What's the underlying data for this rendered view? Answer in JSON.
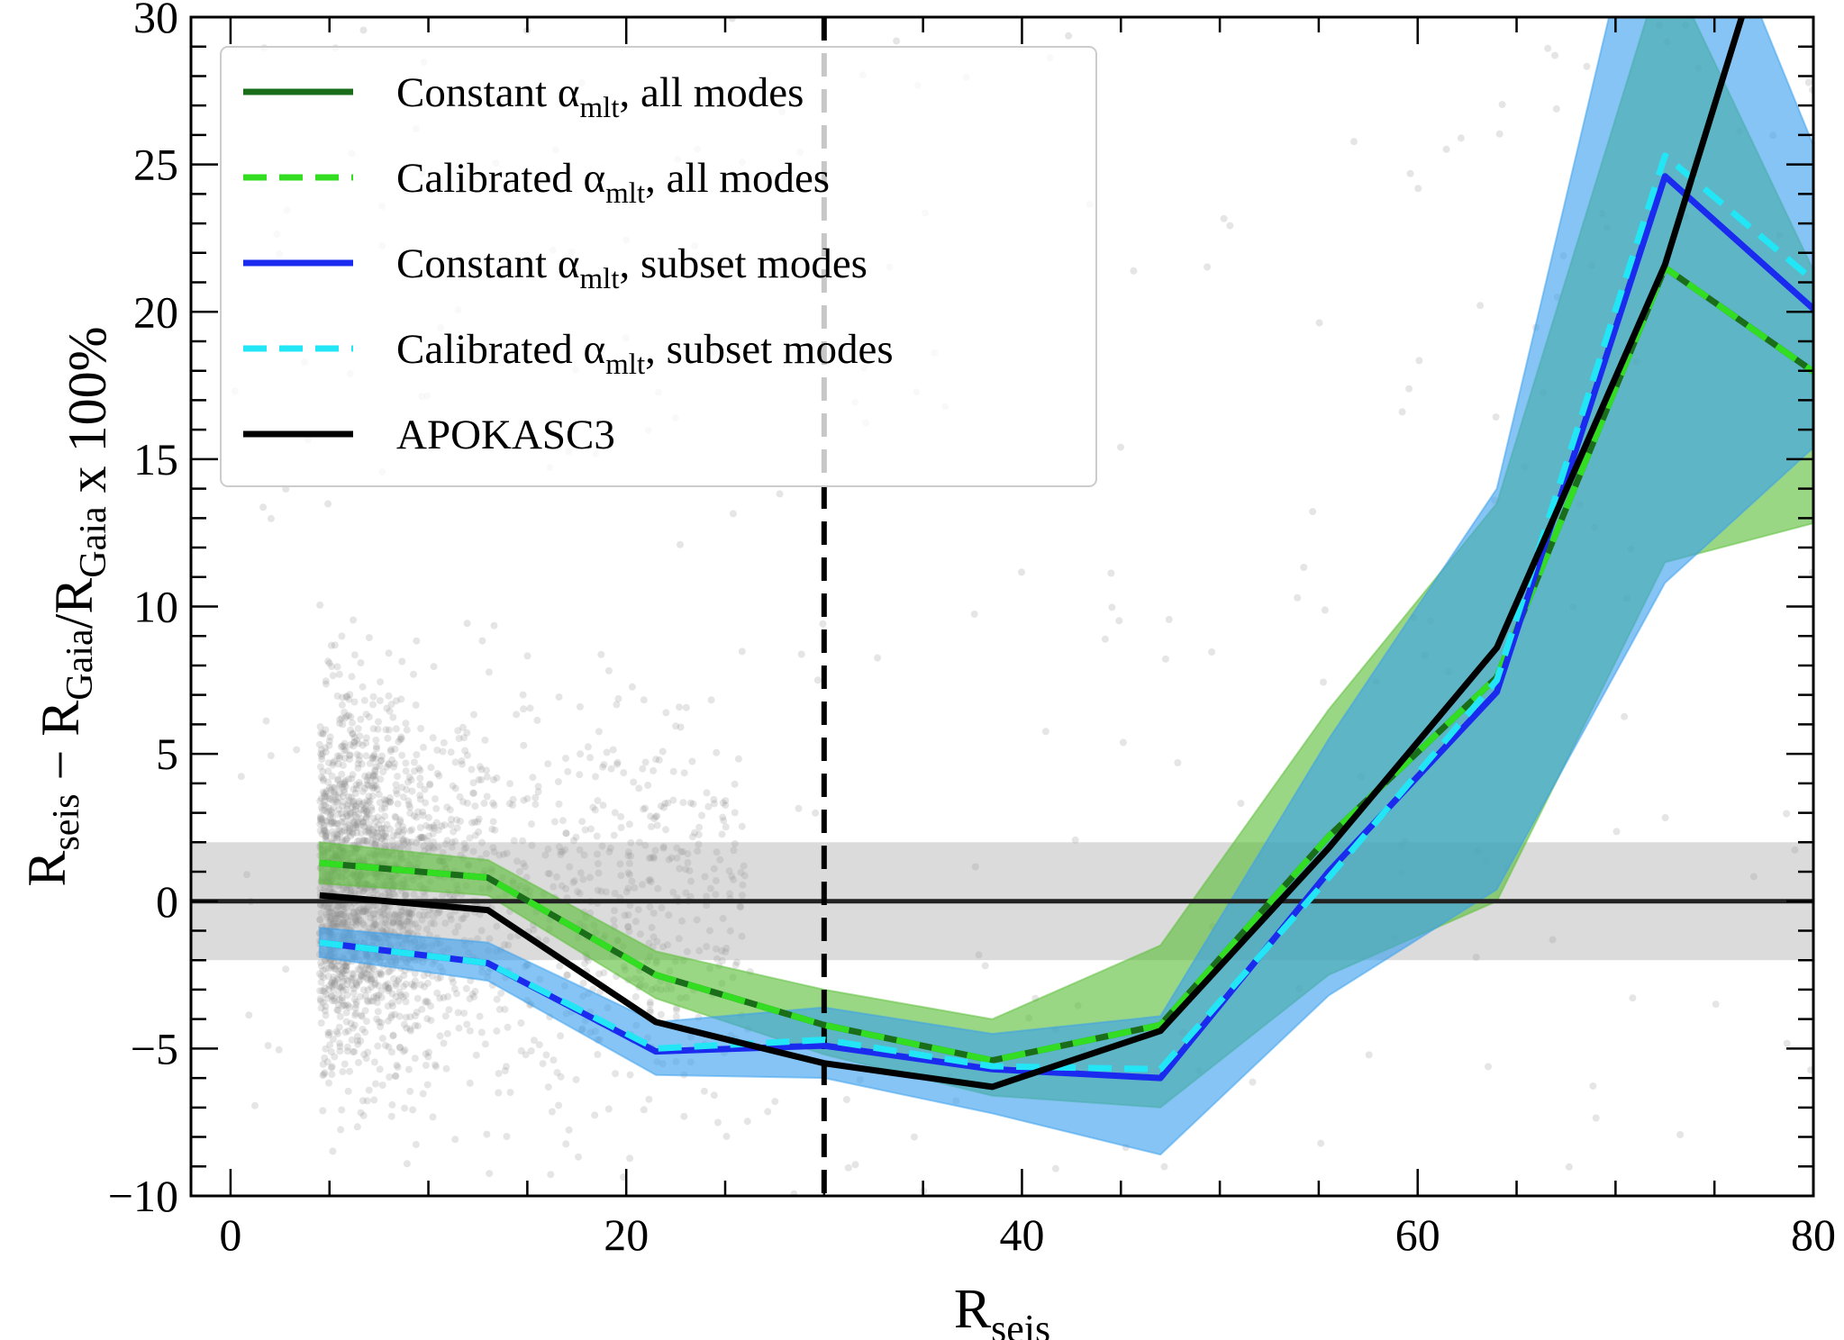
{
  "chart_data": {
    "type": "line",
    "xlabel": {
      "main": "R",
      "sub": "seis"
    },
    "ylabel": {
      "parts": [
        {
          "t": "R",
          "s": "seis"
        },
        {
          "t": " − R",
          "s": "Gaia"
        },
        {
          "t": "/R",
          "s": "Gaia"
        },
        {
          "t": " x 100%",
          "s": ""
        }
      ]
    },
    "xlim": [
      -2,
      80
    ],
    "ylim": [
      -10,
      30
    ],
    "xticks": [
      0,
      20,
      40,
      60,
      80
    ],
    "yticks": [
      -10,
      -5,
      0,
      5,
      10,
      15,
      20,
      25,
      30
    ],
    "x": [
      4.5,
      13,
      21.5,
      30,
      38.5,
      47,
      55.5,
      64,
      72.5,
      81
    ],
    "reference_line": {
      "y": 0,
      "band": [
        -2,
        2
      ]
    },
    "vertical_line": {
      "x": 30,
      "style": "dashed"
    },
    "series": [
      {
        "name": "Constant αmlt, all modes",
        "label_main": "Constant α",
        "label_sub": "mlt",
        "label_rest": ", all modes",
        "color": "#1a6e1a",
        "dash": "",
        "values": [
          1.3,
          0.8,
          -2.5,
          -4.2,
          -5.4,
          -4.2,
          2.2,
          7.6,
          21.5,
          17.5
        ],
        "band_color": "#5cbf3a",
        "band_lower": [
          0.6,
          0.2,
          -3.3,
          -5.2,
          -6.6,
          -7.0,
          -2.5,
          0.0,
          11.5,
          13.0
        ],
        "band_upper": [
          2.0,
          1.4,
          -1.7,
          -3.0,
          -4.0,
          -1.5,
          6.5,
          13.5,
          32.0,
          20.0
        ]
      },
      {
        "name": "Calibrated αmlt, all modes",
        "label_main": "Calibrated α",
        "label_sub": "mlt",
        "label_rest": ", all modes",
        "color": "#33dd22",
        "dash": "26,14",
        "values": [
          1.3,
          0.8,
          -2.5,
          -4.2,
          -5.4,
          -4.2,
          2.2,
          7.6,
          21.5,
          17.5
        ]
      },
      {
        "name": "Constant αmlt, subset modes",
        "label_main": "Constant α",
        "label_sub": "mlt",
        "label_rest": ", subset modes",
        "color": "#1a2aee",
        "dash": "",
        "values": [
          -1.4,
          -2.1,
          -5.1,
          -4.9,
          -5.7,
          -6.0,
          1.0,
          7.1,
          24.6,
          19.5
        ],
        "band_color": "#3aa0ee",
        "band_lower": [
          -1.9,
          -2.7,
          -5.9,
          -6.0,
          -7.2,
          -8.6,
          -3.2,
          0.4,
          10.8,
          16.0
        ],
        "band_upper": [
          -0.9,
          -1.4,
          -4.1,
          -3.6,
          -4.5,
          -3.9,
          5.5,
          14.0,
          38.0,
          24.0
        ]
      },
      {
        "name": "Calibrated αmlt, subset modes",
        "label_main": "Calibrated α",
        "label_sub": "mlt",
        "label_rest": ", subset modes",
        "color": "#22e6f6",
        "dash": "26,14",
        "values": [
          -1.4,
          -2.1,
          -5.0,
          -4.7,
          -5.6,
          -5.7,
          0.8,
          7.5,
          25.3,
          20.5
        ]
      },
      {
        "name": "APOKASC3",
        "label_main": "APOKASC3",
        "label_sub": "",
        "label_rest": "",
        "color": "#000000",
        "dash": "",
        "values": [
          0.2,
          -0.3,
          -4.1,
          -5.5,
          -6.3,
          -4.4,
          1.8,
          8.6,
          21.6,
          40.0
        ]
      }
    ],
    "scatter_note": "grey background points of individual stars, dense at R_seis < 30"
  }
}
